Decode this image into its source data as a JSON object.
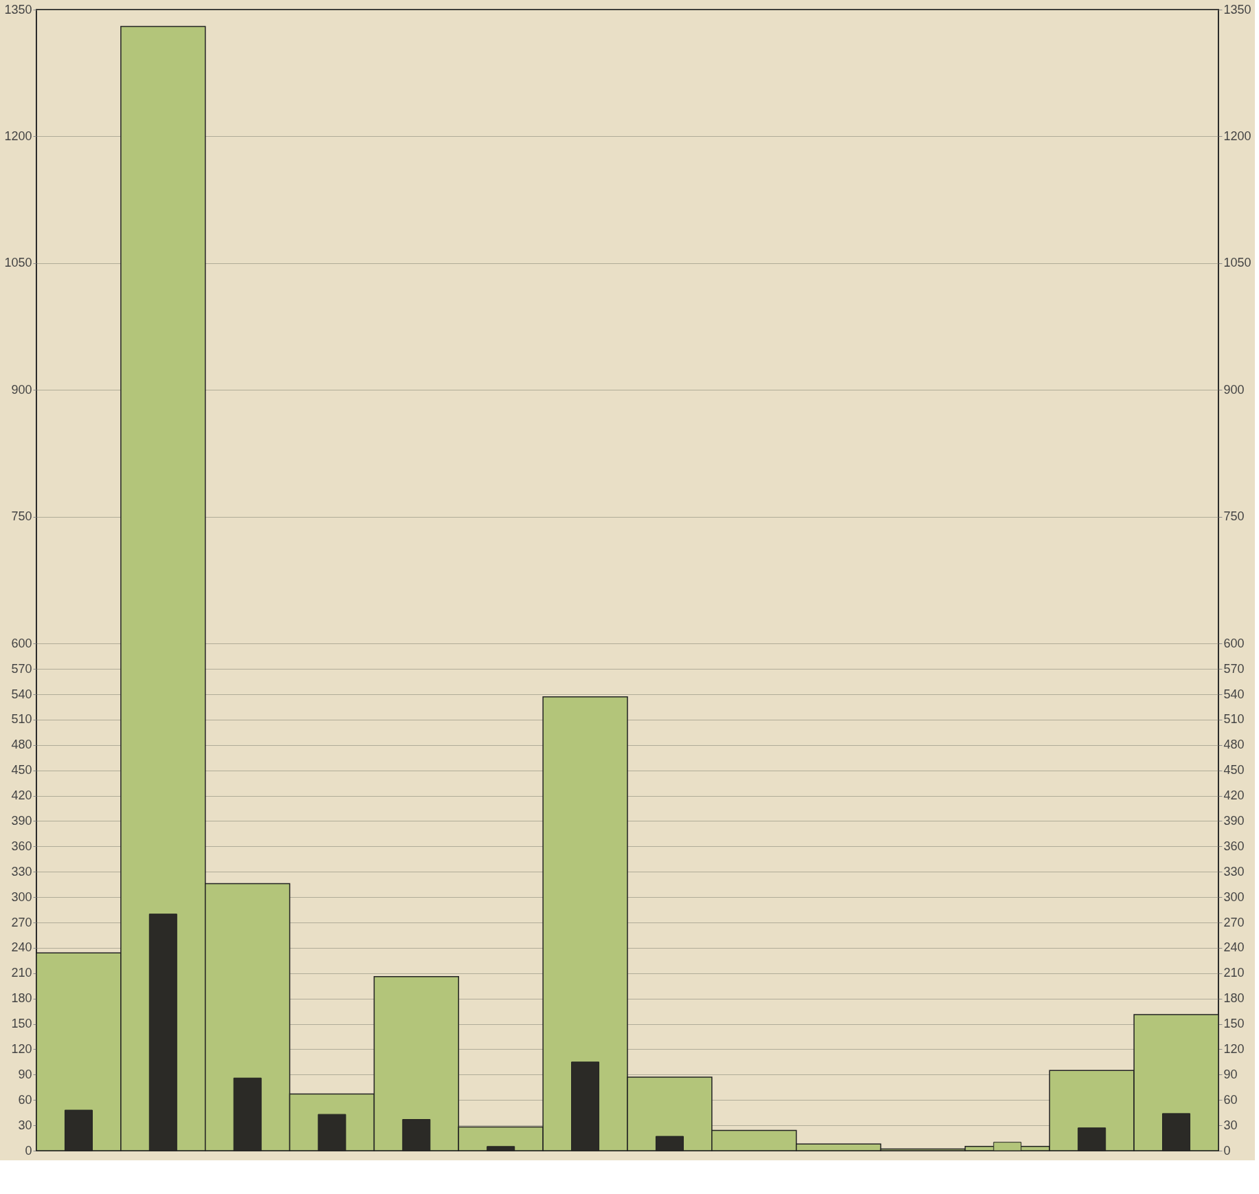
{
  "chart_data": {
    "type": "bar",
    "categories": [
      null,
      null,
      null,
      null,
      null,
      null,
      null,
      null,
      null,
      null,
      null,
      null,
      null,
      null
    ],
    "series": [
      {
        "color": "#b3c57a",
        "values": [
          234,
          1330,
          316,
          67,
          206,
          28,
          537,
          87,
          24,
          8,
          2,
          5,
          95,
          161
        ]
      },
      {
        "axis": "y2",
        "colors": [
          "#2b2a26",
          "#2b2a26",
          "#2b2a26",
          "#2b2a26",
          "#2b2a26",
          "#2b2a26",
          "#2b2a26",
          "#2b2a26",
          "#2b2a26",
          "#2b2a26",
          "#2b2a26",
          "#b3c57a",
          "#2b2a26",
          "#2b2a26"
        ],
        "values": [
          48,
          280,
          86,
          43,
          37,
          5,
          105,
          17,
          null,
          null,
          null,
          10,
          27,
          44
        ]
      }
    ],
    "ylim": [
      0,
      1350
    ],
    "yticks": [
      0,
      30,
      60,
      90,
      120,
      150,
      180,
      210,
      240,
      270,
      300,
      330,
      360,
      390,
      420,
      450,
      480,
      510,
      540,
      570,
      600,
      750,
      900,
      1050,
      1200,
      1350
    ],
    "y2lim": [
      0,
      1350
    ],
    "y2ticks": [
      0,
      30,
      60,
      90,
      120,
      150,
      180,
      210,
      240,
      270,
      300,
      330,
      360,
      390,
      420,
      450,
      480,
      510,
      540,
      570,
      600,
      750,
      900,
      1050,
      1200,
      1350
    ],
    "grid": true,
    "tick_labels": "y"
  }
}
